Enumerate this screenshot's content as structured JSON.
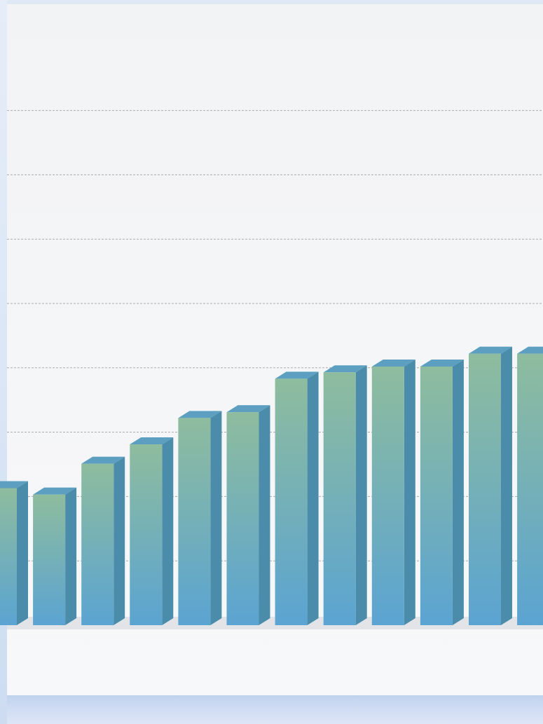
{
  "chart_data": {
    "type": "bar",
    "categories": [
      "",
      "",
      "",
      "",
      "",
      "",
      "",
      "",
      "",
      "",
      "",
      ""
    ],
    "values": [
      2.13,
      2.03,
      2.51,
      2.81,
      3.22,
      3.31,
      3.83,
      3.93,
      4.02,
      4.02,
      4.22,
      4.22
    ],
    "title": "",
    "xlabel": "",
    "ylabel": "",
    "ylim": [
      0,
      8
    ],
    "grid": true,
    "grid_style": "dashed",
    "legend": "none",
    "style": "3d",
    "colors": {
      "bar_top": "#8ebc9e",
      "bar_bottom": "#5ba4d2",
      "bar_side": "#4b8cab",
      "bar_cap": "#5d9fc0",
      "grid": "#a9acaf",
      "floor": "#d2d5d8"
    }
  }
}
